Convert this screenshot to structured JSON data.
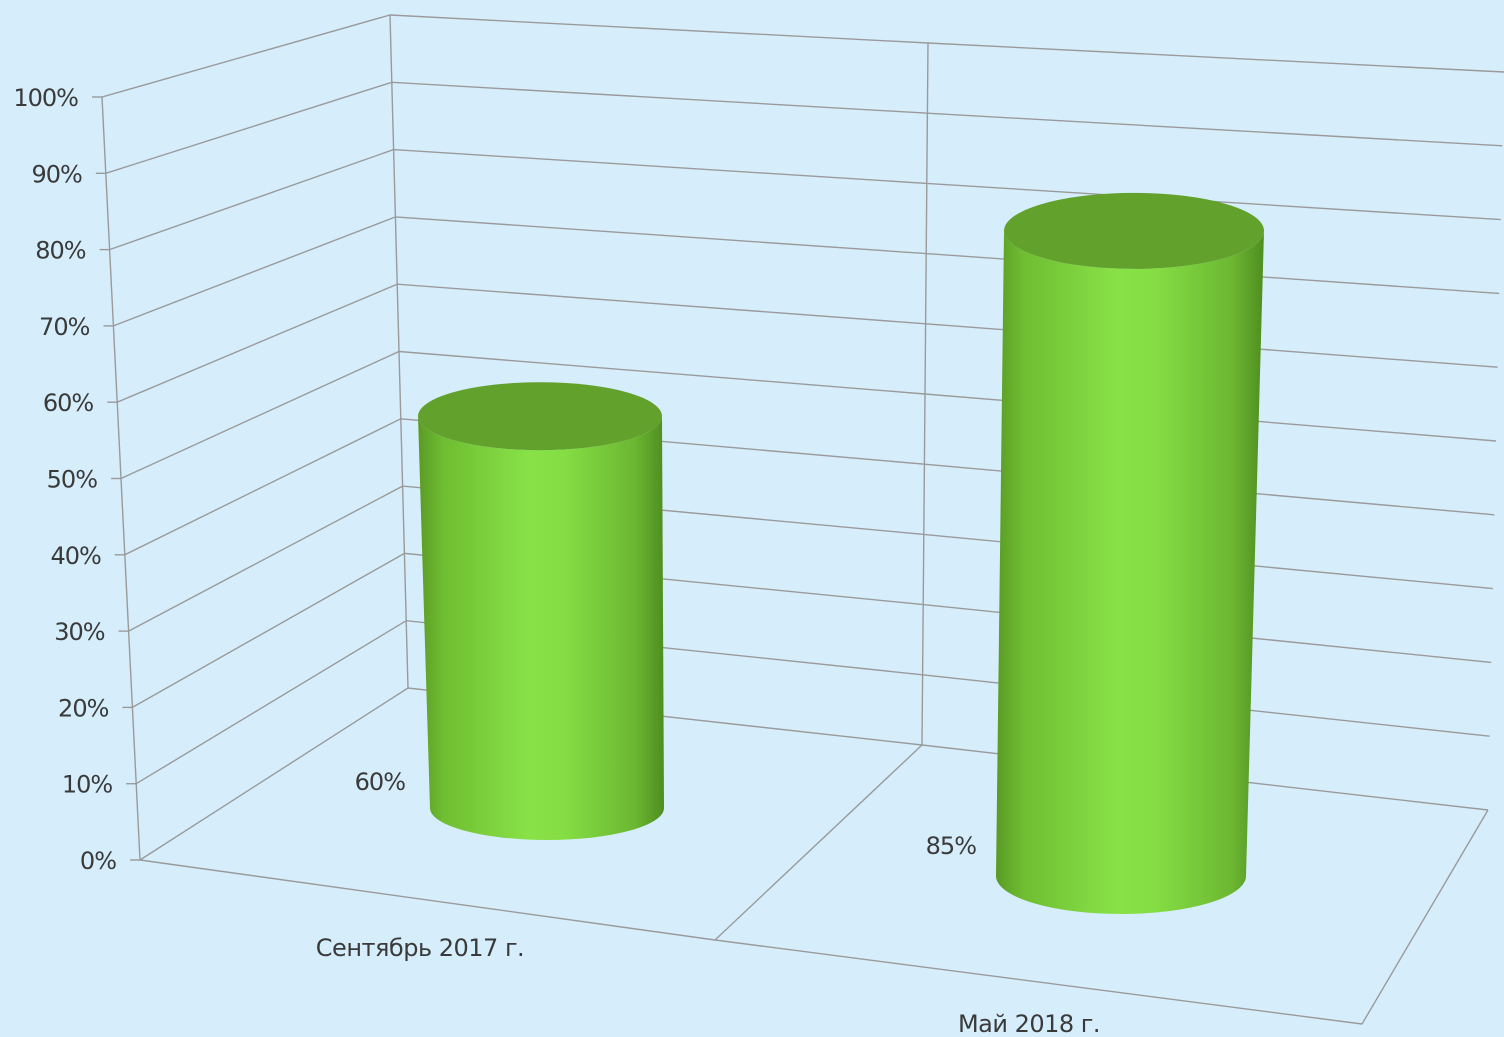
{
  "chart_data": {
    "type": "bar",
    "categories": [
      "Сентябрь 2017 г.",
      "Май 2018 г."
    ],
    "values": [
      60,
      85
    ],
    "data_labels": [
      "60%",
      "85%"
    ],
    "ylim": [
      0,
      100
    ],
    "y_ticks": [
      "0%",
      "10%",
      "20%",
      "30%",
      "40%",
      "50%",
      "60%",
      "70%",
      "80%",
      "90%",
      "100%"
    ],
    "grid": true,
    "legend": "none",
    "style": "3d-cylinder",
    "title": "",
    "xlabel": "",
    "ylabel": ""
  },
  "colors": {
    "background": "#d6eefc",
    "grid": "#9a9a9a",
    "bar_light": "#86e044",
    "bar_dark": "#5a9a25",
    "bar_top": "#62a12c"
  }
}
